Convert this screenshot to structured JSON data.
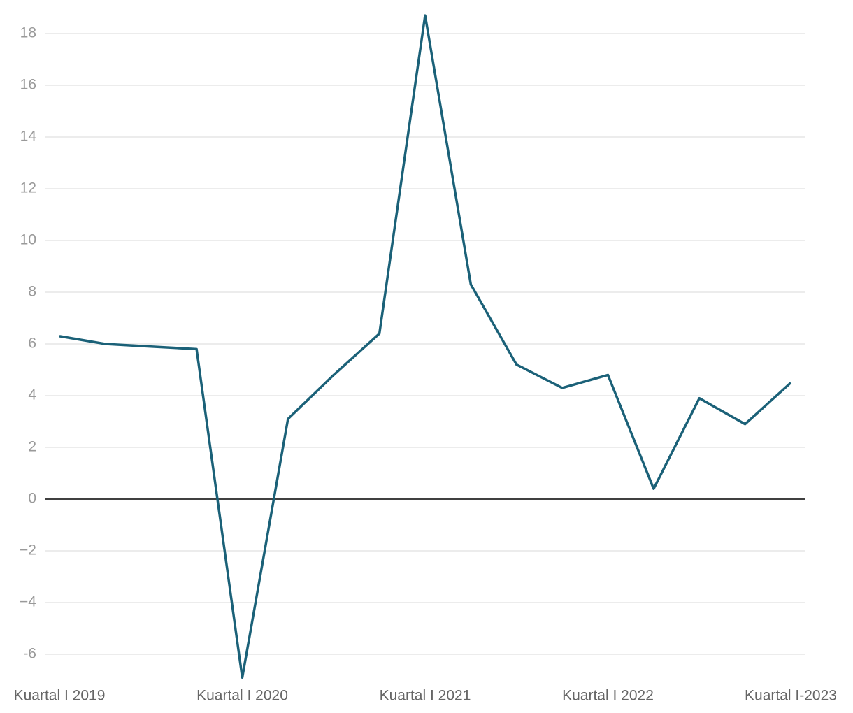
{
  "chart_data": {
    "type": "line",
    "categories": [
      "Kuartal I 2019",
      null,
      null,
      null,
      "Kuartal I 2020",
      null,
      null,
      null,
      "Kuartal I 2021",
      null,
      null,
      null,
      "Kuartal I 2022",
      null,
      null,
      null,
      "Kuartal I-2023"
    ],
    "series": [
      {
        "color": "#1b6178",
        "values": [
          6.3,
          6.0,
          5.9,
          5.8,
          -6.9,
          3.1,
          4.8,
          6.4,
          18.7,
          8.3,
          5.2,
          4.3,
          4.8,
          0.4,
          3.9,
          2.9,
          4.5
        ]
      }
    ],
    "ylim": [
      -7,
      19
    ],
    "yticks": [
      -6,
      {
        "value": -4,
        "label": "−4"
      },
      {
        "value": -2,
        "label": "−2"
      },
      0,
      2,
      4,
      6,
      8,
      10,
      12,
      14,
      16,
      18
    ],
    "grid": true
  }
}
